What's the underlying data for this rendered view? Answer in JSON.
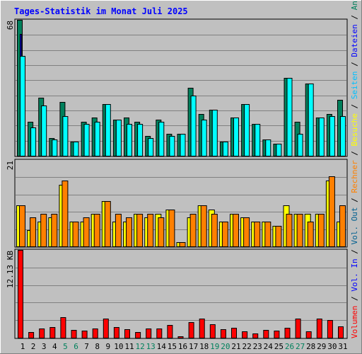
{
  "title": "Tages-Statistik im Monat Juli 2025",
  "right_labels": [
    {
      "text": "Anfragen",
      "color": "#00805c"
    },
    {
      "text": "Dateien",
      "color": "#0000ff"
    },
    {
      "text": "Seiten",
      "color": "#00c0ff"
    },
    {
      "text": "Besuche",
      "color": "#ffff00"
    },
    {
      "text": "Rechner",
      "color": "#ff8000"
    },
    {
      "text": "Vol. Out",
      "color": "#006090"
    },
    {
      "text": "Vol. In",
      "color": "#0000ff"
    },
    {
      "text": "Volumen",
      "color": "#ff0000"
    }
  ],
  "separator": " / ",
  "colors": {
    "background": "#c0c0c0",
    "plot": "#c0c0c0",
    "grid": "#808080",
    "frame_dark": "#000000",
    "title": "#0000ff",
    "weekend_day": "#00805c",
    "weekday": "#000000"
  },
  "days": [
    "1",
    "2",
    "3",
    "4",
    "5",
    "6",
    "7",
    "8",
    "9",
    "10",
    "11",
    "12",
    "13",
    "14",
    "15",
    "16",
    "17",
    "18",
    "19",
    "20",
    "21",
    "22",
    "23",
    "24",
    "25",
    "26",
    "27",
    "28",
    "29",
    "30",
    "31"
  ],
  "weekend_days": [
    "5",
    "6",
    "12",
    "13",
    "19",
    "20",
    "26",
    "27"
  ],
  "chart_data": [
    {
      "type": "bar",
      "name": "hits",
      "ylabel_max": "68",
      "ylim": [
        0,
        68
      ],
      "series": [
        {
          "name": "Anfragen",
          "color": "#00805c",
          "values": [
            68,
            17,
            29,
            9,
            27,
            7,
            17,
            19,
            26,
            18,
            19,
            17,
            10,
            18,
            11,
            11,
            34,
            21,
            23,
            7,
            19,
            26,
            16,
            8,
            6,
            39,
            17,
            36,
            19,
            21,
            28
          ]
        },
        {
          "name": "Dateien",
          "color": "#0000ff",
          "values": [
            61,
            13,
            25,
            8,
            20,
            7,
            16,
            17,
            26,
            18,
            16,
            16,
            9,
            17,
            10,
            11,
            30,
            16,
            23,
            7,
            19,
            26,
            16,
            8,
            6,
            39,
            11,
            36,
            19,
            20,
            20
          ]
        },
        {
          "name": "Seiten",
          "color": "#00ffff",
          "values": [
            50,
            14,
            25,
            8,
            20,
            7,
            16,
            17,
            26,
            18,
            16,
            16,
            9,
            17,
            10,
            11,
            30,
            18,
            23,
            7,
            19,
            26,
            16,
            8,
            6,
            39,
            11,
            36,
            19,
            20,
            20
          ]
        }
      ]
    },
    {
      "type": "bar",
      "name": "visits",
      "ylabel_max": "21",
      "ylim": [
        0,
        21
      ],
      "series": [
        {
          "name": "Besuche",
          "color": "#ffff00",
          "values": [
            10,
            4,
            6,
            7,
            15,
            6,
            6,
            8,
            11,
            6,
            6,
            8,
            7,
            8,
            9,
            1,
            7,
            10,
            9,
            6,
            8,
            7,
            6,
            6,
            5,
            10,
            8,
            8,
            8,
            16,
            6
          ]
        },
        {
          "name": "Rechner",
          "color": "#ff8000",
          "values": [
            10,
            7,
            8,
            8,
            16,
            6,
            7,
            8,
            11,
            8,
            7,
            8,
            8,
            7,
            9,
            1,
            8,
            10,
            8,
            6,
            8,
            7,
            6,
            6,
            5,
            8,
            8,
            6,
            8,
            17,
            10
          ]
        }
      ]
    },
    {
      "type": "bar",
      "name": "volume",
      "ylabel_max": "12.13 KB",
      "ylim": [
        0,
        12.13
      ],
      "series": [
        {
          "name": "Volumen",
          "color": "#ff0000",
          "values": [
            12.13,
            0.8,
            1.3,
            1.5,
            2.8,
            1.1,
            1.0,
            1.3,
            2.6,
            1.5,
            1.2,
            0.8,
            1.3,
            1.3,
            1.8,
            0.2,
            2.2,
            2.6,
            1.9,
            1.2,
            1.4,
            0.9,
            0.6,
            1.1,
            1.0,
            1.4,
            2.6,
            0.9,
            2.6,
            2.4,
            1.6
          ]
        }
      ]
    }
  ]
}
